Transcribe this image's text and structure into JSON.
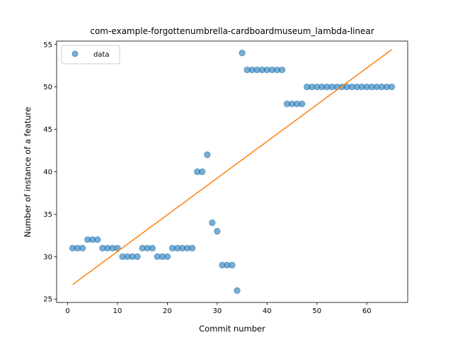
{
  "chart_data": {
    "type": "scatter",
    "title": "com-example-forgottenumbrella-cardboardmuseum_lambda-linear",
    "xlabel": "Commit number",
    "ylabel": "Number of instance of a feature",
    "xlim": [
      -2.2,
      68.2
    ],
    "ylim": [
      24.6,
      55.4
    ],
    "xticks": [
      0,
      10,
      20,
      30,
      40,
      50,
      60
    ],
    "yticks": [
      25,
      30,
      35,
      40,
      45,
      50,
      55
    ],
    "legend": {
      "position": "top-left",
      "entries": [
        "data"
      ]
    },
    "series": [
      {
        "name": "data",
        "marker": "circle",
        "color": "#1f77b4",
        "x": [
          1,
          2,
          3,
          4,
          5,
          6,
          7,
          8,
          9,
          10,
          11,
          12,
          13,
          14,
          15,
          16,
          17,
          18,
          19,
          20,
          21,
          22,
          23,
          24,
          25,
          26,
          27,
          28,
          29,
          30,
          31,
          32,
          33,
          34,
          35,
          36,
          37,
          38,
          39,
          40,
          41,
          42,
          43,
          44,
          45,
          46,
          47,
          48,
          49,
          50,
          51,
          52,
          53,
          54,
          55,
          56,
          57,
          58,
          59,
          60,
          61,
          62,
          63,
          64,
          65
        ],
        "y": [
          31,
          31,
          31,
          32,
          32,
          32,
          31,
          31,
          31,
          31,
          30,
          30,
          30,
          30,
          31,
          31,
          31,
          30,
          30,
          30,
          31,
          31,
          31,
          31,
          31,
          40,
          40,
          42,
          34,
          33,
          29,
          29,
          29,
          26,
          54,
          52,
          52,
          52,
          52,
          52,
          52,
          52,
          52,
          48,
          48,
          48,
          48,
          50,
          50,
          50,
          50,
          50,
          50,
          50,
          50,
          50,
          50,
          50,
          50,
          50,
          50,
          50,
          50,
          50,
          50
        ]
      },
      {
        "type": "line",
        "color": "#ff7f0e",
        "x": [
          1,
          65
        ],
        "y": [
          26.7,
          54.4
        ]
      }
    ]
  }
}
